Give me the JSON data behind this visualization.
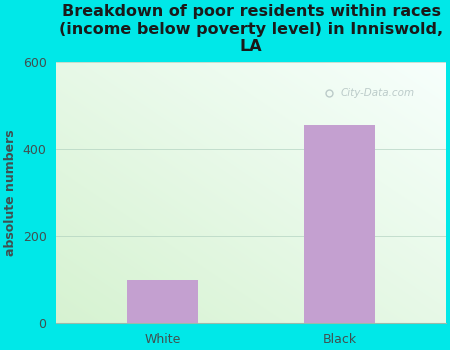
{
  "categories": [
    "White",
    "Black"
  ],
  "values": [
    100,
    455
  ],
  "bar_color": "#c4a0d0",
  "title": "Breakdown of poor residents within races\n(income below poverty level) in Inniswold,\nLA",
  "ylabel": "absolute numbers",
  "ylim": [
    0,
    600
  ],
  "yticks": [
    0,
    200,
    400,
    600
  ],
  "background_color": "#00e8e8",
  "plot_bg_color_topleft": "#eef8e8",
  "plot_bg_color_topright": "#f8fffe",
  "plot_bg_color_bottomleft": "#d8f0d0",
  "plot_bg_color_bottomright": "#f0fff8",
  "title_fontsize": 11.5,
  "label_fontsize": 9,
  "tick_fontsize": 9,
  "ylabel_color": "#405050",
  "tick_color": "#405050",
  "watermark": "City-Data.com",
  "bar_positions": [
    0.25,
    0.75
  ],
  "bar_width": 0.2
}
